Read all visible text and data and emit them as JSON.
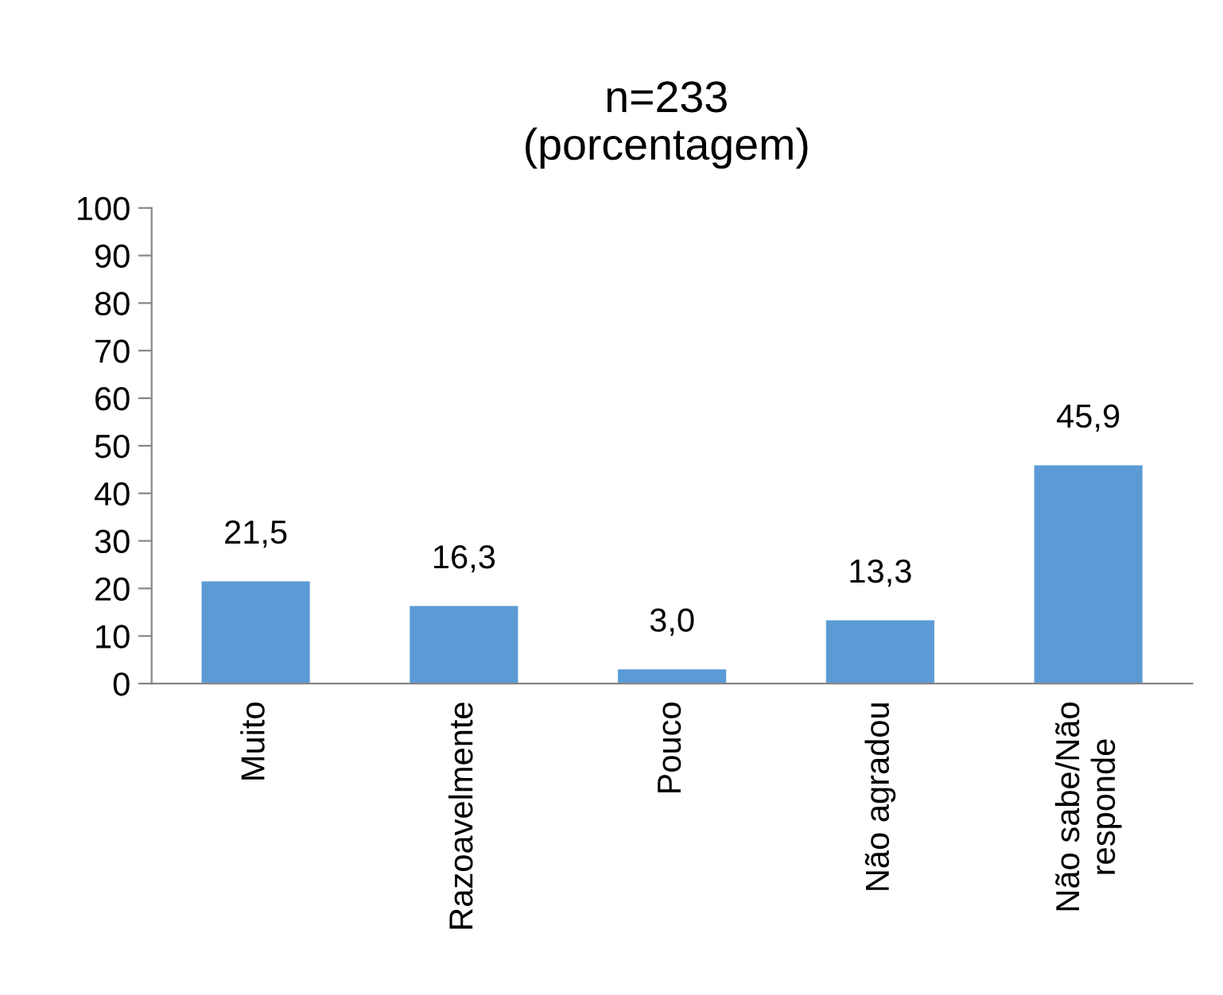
{
  "chart_data": {
    "type": "bar",
    "title": "n=233\n(porcentagem)",
    "categories": [
      "Muito",
      "Razoavelmente",
      "Pouco",
      "Não agradou",
      "Não sabe/Não\nresponde"
    ],
    "values": [
      21.5,
      16.3,
      3.0,
      13.3,
      45.9
    ],
    "value_labels": [
      "21,5",
      "16,3",
      "3,0",
      "13,3",
      "45,9"
    ],
    "color": "#5b9bd5",
    "ylim": [
      0,
      100
    ],
    "yticks": [
      0,
      10,
      20,
      30,
      40,
      50,
      60,
      70,
      80,
      90,
      100
    ],
    "grid": false,
    "legend": false
  }
}
